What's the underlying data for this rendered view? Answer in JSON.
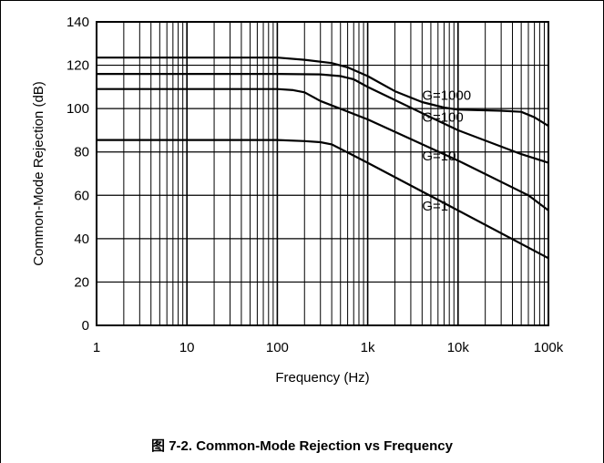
{
  "caption": "图 7-2. Common-Mode Rejection vs Frequency",
  "chart_data": {
    "type": "line",
    "xscale": "log",
    "xlim": [
      1,
      100000
    ],
    "ylim": [
      0,
      140
    ],
    "grid": true,
    "xlabel": "Frequency (Hz)",
    "ylabel": "Common-Mode Rejection (dB)",
    "xticks": [
      1,
      10,
      100,
      1000,
      10000,
      100000
    ],
    "xtick_labels": [
      "1",
      "10",
      "100",
      "1k",
      "10k",
      "100k"
    ],
    "yticks": [
      0,
      20,
      40,
      60,
      80,
      100,
      120,
      140
    ],
    "ytick_labels": [
      "0",
      "20",
      "40",
      "60",
      "80",
      "100",
      "120",
      "140"
    ],
    "series": [
      {
        "name": "G=1000",
        "label_at": [
          4000,
          104
        ],
        "x": [
          1,
          100,
          200,
          400,
          600,
          1000,
          2000,
          4000,
          7000,
          10000,
          30000,
          50000,
          70000,
          100000
        ],
        "y": [
          123.5,
          123.5,
          122.5,
          121,
          119,
          115,
          108,
          103,
          100.5,
          99.5,
          99,
          98.5,
          96,
          92
        ]
      },
      {
        "name": "G=100",
        "label_at": [
          4000,
          94
        ],
        "x": [
          1,
          100,
          300,
          500,
          700,
          1000,
          5000,
          10000,
          50000,
          100000
        ],
        "y": [
          116,
          116,
          115.8,
          115,
          113.5,
          110,
          96,
          90,
          79,
          75
        ]
      },
      {
        "name": "G=10",
        "label_at": [
          4000,
          76
        ],
        "x": [
          1,
          100,
          150,
          200,
          300,
          1000,
          10000,
          60000,
          100000
        ],
        "y": [
          109,
          109,
          108.5,
          107.5,
          103.5,
          95,
          76,
          60,
          53
        ]
      },
      {
        "name": "G=1",
        "label_at": [
          4000,
          53
        ],
        "x": [
          1,
          100,
          200,
          300,
          400,
          1000,
          10000,
          100000
        ],
        "y": [
          85.5,
          85.5,
          85,
          84.5,
          83.5,
          75,
          53,
          31
        ]
      }
    ]
  }
}
